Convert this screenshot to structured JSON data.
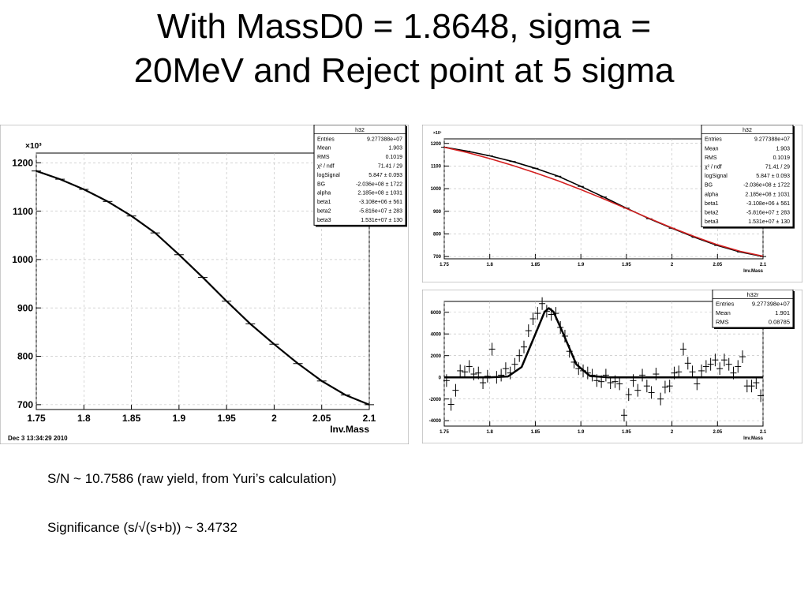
{
  "slide": {
    "title_line1": "With MassD0 = 1.8648, sigma =",
    "title_line2": "20MeV and Reject point at 5 sigma",
    "text_sn": "S/N ~ 10.7586 (raw yield, from Yuri’s calculation)",
    "text_significance": "Significance (s/√(s+b)) ~ 3.4732"
  },
  "colors": {
    "data": "#000000",
    "fit": "#000000",
    "alt_fit": "#d42020",
    "grid": "#bbbbbb",
    "frame": "#999999"
  },
  "chart_data": [
    {
      "id": "main",
      "type": "line",
      "xlabel": "Inv.Mass",
      "y_multiplier_label": "×10³",
      "timestamp": "Dec  3 13:34:29 2010",
      "xlim": [
        1.75,
        2.1
      ],
      "ylim": [
        690,
        1220
      ],
      "x_ticks": [
        "1.75",
        "1.8",
        "1.85",
        "1.9",
        "1.95",
        "2",
        "2.05",
        "2.1"
      ],
      "y_ticks": [
        "700",
        "800",
        "900",
        "1000",
        "1100",
        "1200"
      ],
      "grid": true,
      "series": [
        {
          "x": [
            1.75,
            1.775,
            1.8,
            1.825,
            1.85,
            1.875,
            1.9,
            1.925,
            1.95,
            1.975,
            2.0,
            2.025,
            2.05,
            2.075,
            2.1
          ],
          "y": [
            1183,
            1166,
            1145,
            1120,
            1090,
            1055,
            1010,
            963,
            914,
            867,
            825,
            785,
            749,
            720,
            700
          ]
        }
      ],
      "stats_box": {
        "title": "h32",
        "rows": [
          [
            "Entries",
            "9.277388e+07"
          ],
          [
            "Mean",
            "1.903"
          ],
          [
            "RMS",
            "0.1019"
          ],
          [
            "χ² / ndf",
            "71.41 / 29"
          ],
          [
            "logSignal",
            "5.847 ± 0.093"
          ],
          [
            "BG",
            "-2.036e+08 ± 1722"
          ],
          [
            "alpha",
            "2.185e+08 ± 1031"
          ],
          [
            "beta1",
            "-3.108e+06 ± 561"
          ],
          [
            "beta2",
            "-5.816e+07 ± 283"
          ],
          [
            "beta3",
            "1.531e+07 ± 130"
          ]
        ]
      }
    },
    {
      "id": "top-right",
      "type": "line",
      "xlabel": "Inv.Mass",
      "y_multiplier_label": "×10³",
      "xlim": [
        1.75,
        2.1
      ],
      "ylim": [
        690,
        1220
      ],
      "x_ticks": [
        "1.75",
        "1.8",
        "1.85",
        "1.9",
        "1.95",
        "2",
        "2.05",
        "2.1"
      ],
      "y_ticks": [
        "700",
        "800",
        "900",
        "1000",
        "1100",
        "1200"
      ],
      "grid": true,
      "series": [
        {
          "x": [
            1.75,
            1.775,
            1.8,
            1.825,
            1.85,
            1.875,
            1.9,
            1.925,
            1.95,
            1.975,
            2.0,
            2.025,
            2.05,
            2.075,
            2.1
          ],
          "y": [
            1183,
            1166,
            1145,
            1120,
            1090,
            1055,
            1010,
            963,
            914,
            867,
            825,
            785,
            749,
            720,
            700
          ]
        },
        {
          "x": [
            1.75,
            1.775,
            1.8,
            1.825,
            1.85,
            1.875,
            1.9,
            1.925,
            1.95,
            1.975,
            2.0,
            2.025,
            2.05,
            2.075,
            2.1
          ],
          "y": [
            1183,
            1160,
            1133,
            1103,
            1070,
            1035,
            996,
            955,
            912,
            869,
            827,
            788,
            752,
            723,
            702
          ]
        }
      ],
      "stats_box": {
        "title": "h32",
        "rows": [
          [
            "Entries",
            "9.277388e+07"
          ],
          [
            "Mean",
            "1.903"
          ],
          [
            "RMS",
            "0.1019"
          ],
          [
            "χ² / ndf",
            "71.41 / 29"
          ],
          [
            "logSignal",
            "5.847 ± 0.093"
          ],
          [
            "BG",
            "-2.036e+08 ± 1722"
          ],
          [
            "alpha",
            "2.185e+08 ± 1031"
          ],
          [
            "beta1",
            "-3.108e+06 ± 561"
          ],
          [
            "beta2",
            "-5.816e+07 ± 283"
          ],
          [
            "beta3",
            "1.531e+07 ± 130"
          ]
        ]
      }
    },
    {
      "id": "bottom-right",
      "type": "scatter",
      "xlabel": "Inv.Mass",
      "xlim": [
        1.75,
        2.1
      ],
      "ylim": [
        -4500,
        7000
      ],
      "x_ticks": [
        "1.75",
        "1.8",
        "1.85",
        "1.9",
        "1.95",
        "2",
        "2.05",
        "2.1"
      ],
      "y_ticks": [
        "-4000",
        "-2000",
        "0",
        "2000",
        "4000",
        "6000"
      ],
      "grid": true,
      "series": [
        {
          "x": [
            1.7525,
            1.7575,
            1.7625,
            1.7675,
            1.7725,
            1.7775,
            1.7825,
            1.7875,
            1.7925,
            1.7975,
            1.8025,
            1.8075,
            1.8125,
            1.8175,
            1.8225,
            1.8275,
            1.8325,
            1.8375,
            1.8425,
            1.8475,
            1.8525,
            1.8575,
            1.8625,
            1.8675,
            1.8725,
            1.8775,
            1.8825,
            1.8875,
            1.8925,
            1.8975,
            1.9025,
            1.9075,
            1.9125,
            1.9175,
            1.9225,
            1.9275,
            1.9325,
            1.9375,
            1.9425,
            1.9475,
            1.9525,
            1.9575,
            1.9625,
            1.9675,
            1.9725,
            1.9775,
            1.9825,
            1.9875,
            1.9925,
            1.9975,
            2.0025,
            2.0075,
            2.0125,
            2.0175,
            2.0225,
            2.0275,
            2.0325,
            2.0375,
            2.0425,
            2.0475,
            2.0525,
            2.0575,
            2.0625,
            2.0675,
            2.0725,
            2.0775,
            2.0825,
            2.0875,
            2.0925,
            2.0975
          ],
          "y": [
            -300,
            -2500,
            -1200,
            600,
            500,
            1000,
            300,
            400,
            -500,
            100,
            2600,
            0,
            200,
            800,
            400,
            1200,
            2000,
            2800,
            4300,
            5400,
            5900,
            6800,
            6100,
            5800,
            5900,
            4600,
            3800,
            2400,
            1400,
            800,
            600,
            400,
            200,
            -300,
            -400,
            200,
            -500,
            -400,
            -600,
            -3500,
            -1600,
            -300,
            -1200,
            200,
            -800,
            -1400,
            300,
            -2000,
            -900,
            -800,
            400,
            500,
            2600,
            1300,
            500,
            -600,
            600,
            1000,
            1200,
            1600,
            800,
            1600,
            1200,
            400,
            1000,
            1900,
            -800,
            -800,
            -500,
            -1700
          ]
        },
        {
          "x": [
            1.75,
            1.8,
            1.82,
            1.835,
            1.85,
            1.86,
            1.8648,
            1.87,
            1.88,
            1.895,
            1.91,
            1.93,
            2.1
          ],
          "y": [
            0,
            0,
            80,
            950,
            3970,
            6010,
            6380,
            6050,
            4150,
            1190,
            120,
            0,
            0
          ]
        }
      ],
      "stats_box": {
        "title": "h32r",
        "rows": [
          [
            "Entries",
            "9.277398e+07"
          ],
          [
            "Mean",
            "1.901"
          ],
          [
            "RMS",
            "0.08785"
          ]
        ]
      }
    }
  ]
}
